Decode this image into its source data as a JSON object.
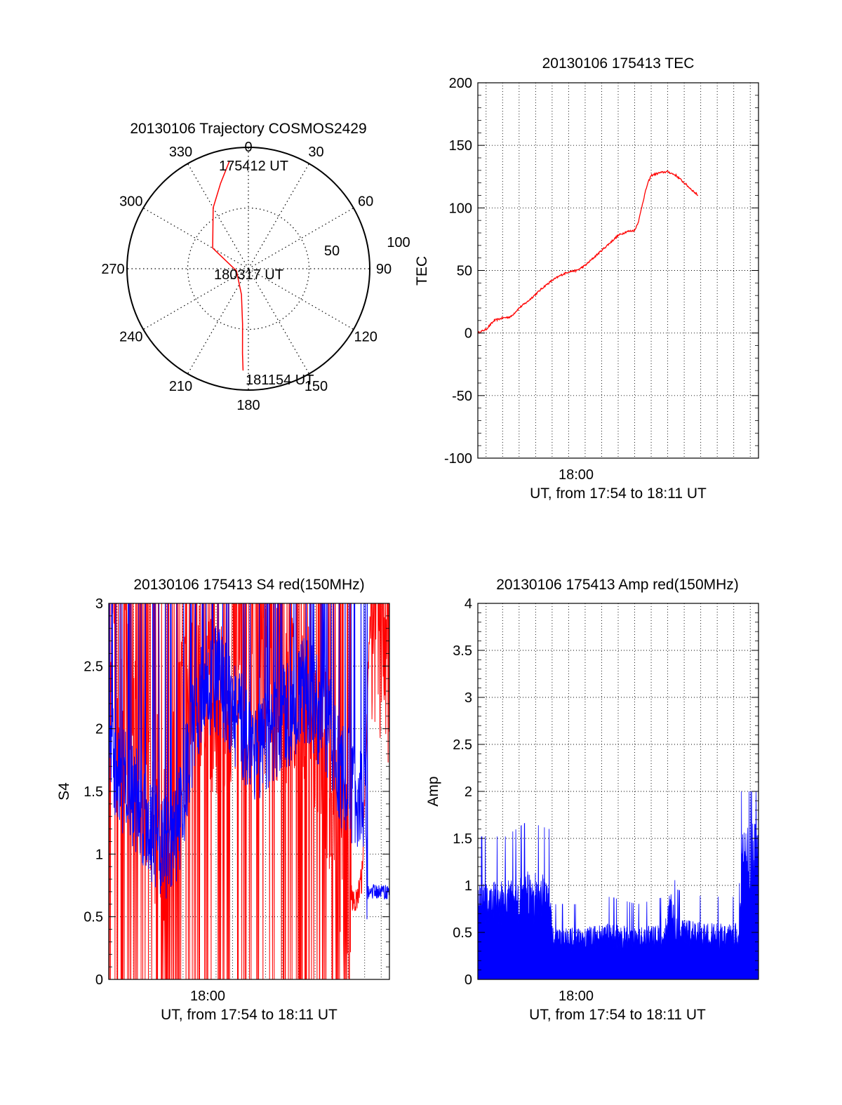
{
  "chart_data": [
    {
      "type": "polar",
      "title": "20130106 Trajectory COSMOS2429",
      "azimuth_labels": [
        "0",
        "30",
        "60",
        "90",
        "120",
        "150",
        "180",
        "210",
        "240",
        "270",
        "300",
        "330"
      ],
      "radius_labels": [
        "50",
        "100"
      ],
      "annotations": [
        "175412 UT",
        "180317 UT",
        "181154 UT"
      ],
      "series": [
        {
          "color": "#ff0000",
          "points": [
            {
              "az": 350,
              "zen": 90
            },
            {
              "az": 342,
              "zen": 74
            },
            {
              "az": 330,
              "zen": 58
            },
            {
              "az": 300,
              "zen": 34
            },
            {
              "az": 260,
              "zen": 10
            },
            {
              "az": 195,
              "zen": 22
            },
            {
              "az": 186,
              "zen": 46
            },
            {
              "az": 184,
              "zen": 70
            },
            {
              "az": 183,
              "zen": 84
            }
          ]
        }
      ]
    },
    {
      "type": "line",
      "title": "20130106 175413 TEC",
      "xlabel": "UT, from 17:54 to 18:11 UT",
      "ylabel": "TEC",
      "xtick_label": "18:00",
      "xlim": [
        0,
        1020
      ],
      "xtick_value": 360,
      "ylim": [
        -100,
        200
      ],
      "yticks": [
        "-100",
        "-50",
        "0",
        "50",
        "100",
        "150",
        "200"
      ],
      "ytick_values": [
        -100,
        -50,
        0,
        50,
        100,
        150,
        200
      ],
      "series": [
        {
          "color": "#ff0000",
          "points": [
            [
              0,
              0
            ],
            [
              30,
              3
            ],
            [
              60,
              10
            ],
            [
              90,
              12
            ],
            [
              120,
              13
            ],
            [
              150,
              20
            ],
            [
              180,
              25
            ],
            [
              210,
              31
            ],
            [
              240,
              37
            ],
            [
              270,
              42
            ],
            [
              300,
              46
            ],
            [
              330,
              49
            ],
            [
              360,
              50
            ],
            [
              390,
              54
            ],
            [
              420,
              60
            ],
            [
              450,
              66
            ],
            [
              480,
              72
            ],
            [
              510,
              78
            ],
            [
              540,
              81
            ],
            [
              570,
              82
            ],
            [
              585,
              90
            ],
            [
              600,
              105
            ],
            [
              615,
              118
            ],
            [
              630,
              126
            ],
            [
              660,
              128
            ],
            [
              690,
              129
            ],
            [
              720,
              126
            ],
            [
              750,
              120
            ],
            [
              780,
              114
            ],
            [
              800,
              110
            ]
          ]
        }
      ]
    },
    {
      "type": "line",
      "title": "20130106 175413 S4 red(150MHz)",
      "xlabel": "UT, from 17:54 to 18:11 UT",
      "ylabel": "S4",
      "xtick_label": "18:00",
      "xlim": [
        0,
        1020
      ],
      "xtick_value": 360,
      "ylim": [
        0,
        3
      ],
      "yticks": [
        "0",
        "0.5",
        "1",
        "1.5",
        "2",
        "2.5",
        "3"
      ],
      "ytick_values": [
        0,
        0.5,
        1,
        1.5,
        2,
        2.5,
        3
      ],
      "series": [
        {
          "color": "#ff0000",
          "points": [
            [
              0,
              2.8
            ],
            [
              100,
              1.8
            ],
            [
              200,
              1.2
            ],
            [
              300,
              2.5
            ],
            [
              400,
              2.2
            ],
            [
              500,
              2.6
            ],
            [
              600,
              2.3
            ],
            [
              700,
              2.4
            ],
            [
              800,
              1.7
            ],
            [
              850,
              1.0
            ],
            [
              880,
              0.7
            ],
            [
              900,
              0.6
            ],
            [
              920,
              0.8
            ],
            [
              950,
              2.9
            ],
            [
              1020,
              2.5
            ]
          ]
        },
        {
          "color": "#0000ff",
          "points": [
            [
              0,
              1.8
            ],
            [
              80,
              1.5
            ],
            [
              160,
              1.2
            ],
            [
              220,
              1.0
            ],
            [
              260,
              1.3
            ],
            [
              320,
              2.2
            ],
            [
              400,
              2.4
            ],
            [
              480,
              2.0
            ],
            [
              560,
              1.8
            ],
            [
              640,
              2.1
            ],
            [
              720,
              2.3
            ],
            [
              800,
              2.0
            ],
            [
              850,
              1.6
            ],
            [
              900,
              1.5
            ],
            [
              930,
              1.4
            ],
            [
              940,
              0.7
            ],
            [
              1020,
              0.7
            ]
          ]
        }
      ]
    },
    {
      "type": "area",
      "title": "20130106 175413 Amp red(150MHz)",
      "xlabel": "UT, from 17:54 to 18:11 UT",
      "ylabel": "Amp",
      "xtick_label": "18:00",
      "xlim": [
        0,
        1020
      ],
      "xtick_value": 360,
      "ylim": [
        0,
        4
      ],
      "yticks": [
        "0",
        "0.5",
        "1",
        "1.5",
        "2",
        "2.5",
        "3",
        "3.5",
        "4"
      ],
      "ytick_values": [
        0,
        0.5,
        1,
        1.5,
        2,
        2.5,
        3,
        3.5,
        4
      ],
      "series": [
        {
          "color": "#0000ff",
          "points": [
            [
              0,
              0.95
            ],
            [
              100,
              0.95
            ],
            [
              180,
              1.05
            ],
            [
              260,
              1.0
            ],
            [
              275,
              0.5
            ],
            [
              380,
              0.5
            ],
            [
              480,
              0.55
            ],
            [
              580,
              0.5
            ],
            [
              680,
              0.55
            ],
            [
              700,
              0.9
            ],
            [
              720,
              0.6
            ],
            [
              820,
              0.55
            ],
            [
              920,
              0.55
            ],
            [
              950,
              0.55
            ],
            [
              960,
              1.45
            ],
            [
              1020,
              1.55
            ]
          ]
        }
      ]
    }
  ]
}
